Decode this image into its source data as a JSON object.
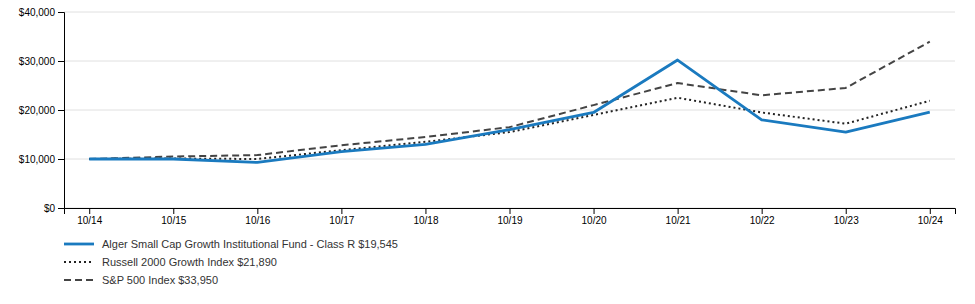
{
  "chart_data": {
    "type": "line",
    "categories": [
      "10/14",
      "10/15",
      "10/16",
      "10/17",
      "10/18",
      "10/19",
      "10/20",
      "10/21",
      "10/22",
      "10/23",
      "10/24"
    ],
    "series": [
      {
        "name": "Alger Small Cap Growth Institutional Fund - Class R $19,545",
        "color": "#1a7abf",
        "line_style": "solid",
        "values": [
          10000,
          10000,
          9300,
          11500,
          13000,
          16000,
          19500,
          30200,
          18000,
          15500,
          19545
        ]
      },
      {
        "name": "Russell 2000 Growth Index $21,890",
        "color": "#222222",
        "line_style": "dotted",
        "values": [
          10000,
          10100,
          10000,
          11800,
          13500,
          15500,
          19000,
          22500,
          19500,
          17200,
          21890
        ]
      },
      {
        "name": "S&P 500 Index $33,950",
        "color": "#444444",
        "line_style": "dashed",
        "values": [
          10000,
          10500,
          10800,
          12800,
          14500,
          16500,
          21000,
          25500,
          23000,
          24500,
          33950
        ]
      }
    ],
    "ylim": [
      0,
      40000
    ],
    "yticks": [
      {
        "value": 0,
        "label": "$0"
      },
      {
        "value": 10000,
        "label": "$10,000"
      },
      {
        "value": 20000,
        "label": "$20,000"
      },
      {
        "value": 30000,
        "label": "$30,000"
      },
      {
        "value": 40000,
        "label": "$40,000"
      }
    ],
    "grid": true,
    "legend": "bottom"
  }
}
